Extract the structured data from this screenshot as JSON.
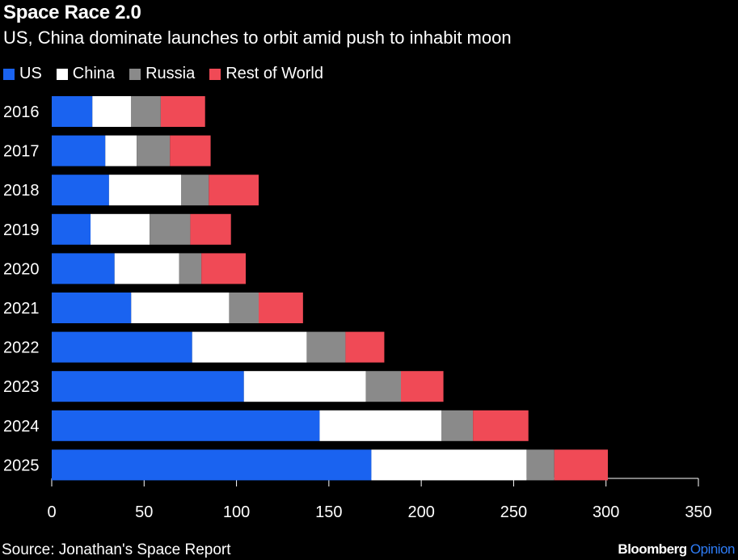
{
  "title": "Space Race 2.0",
  "subtitle": "US, China dominate launches to orbit amid push to inhabit moon",
  "source": "Source: Jonathan's Space Report",
  "brand": {
    "main": "Bloomberg",
    "sub": "Opinion"
  },
  "colors": {
    "US": "#1a63f0",
    "China": "#ffffff",
    "Russia": "#8a8a8a",
    "Rest of World": "#f04a56",
    "background": "#000000"
  },
  "chart_data": {
    "type": "bar",
    "orientation": "horizontal",
    "stacked": true,
    "categories": [
      "2016",
      "2017",
      "2018",
      "2019",
      "2020",
      "2021",
      "2022",
      "2023",
      "2024",
      "2025"
    ],
    "series": [
      {
        "name": "US",
        "values": [
          22,
          29,
          31,
          21,
          34,
          43,
          76,
          104,
          145,
          173
        ]
      },
      {
        "name": "China",
        "values": [
          21,
          17,
          39,
          32,
          35,
          53,
          62,
          66,
          66,
          84
        ]
      },
      {
        "name": "Russia",
        "values": [
          16,
          18,
          15,
          22,
          12,
          16,
          21,
          19,
          17,
          15
        ]
      },
      {
        "name": "Rest of World",
        "values": [
          24,
          22,
          27,
          22,
          24,
          24,
          21,
          23,
          30,
          29
        ]
      }
    ],
    "xlim": [
      0,
      350
    ],
    "xticks": [
      0,
      50,
      100,
      150,
      200,
      250,
      300,
      350
    ],
    "xlabel": "",
    "ylabel": "",
    "grid": false,
    "legend": "top-left"
  }
}
